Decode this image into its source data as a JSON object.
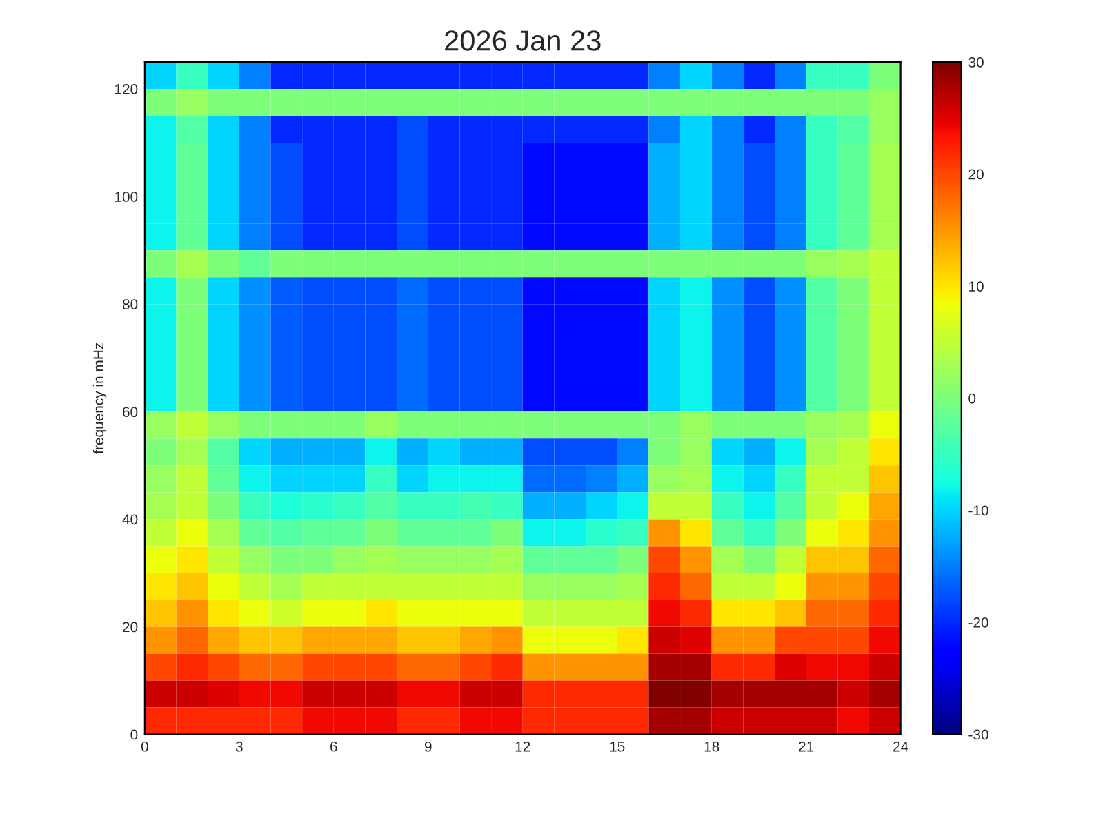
{
  "chart_data": {
    "type": "heatmap",
    "title": "2026 Jan 23",
    "ylabel": "frequency in mHz",
    "x": [
      0.5,
      1.5,
      2.5,
      3.5,
      4.5,
      5.5,
      6.5,
      7.5,
      8.5,
      9.5,
      10.5,
      11.5,
      12.5,
      13.5,
      14.5,
      15.5,
      16.5,
      17.5,
      18.5,
      19.5,
      20.5,
      21.5,
      22.5,
      23.5
    ],
    "xlim": [
      0,
      24
    ],
    "xticks": [
      0,
      3,
      6,
      9,
      12,
      15,
      18,
      21,
      24
    ],
    "ylim": [
      0,
      125
    ],
    "yticks": [
      0,
      20,
      40,
      60,
      80,
      100,
      120
    ],
    "clim": [
      -30,
      30
    ],
    "cticks": [
      -30,
      -20,
      -10,
      0,
      10,
      20,
      30
    ],
    "grid": false,
    "cells": [
      [
        -10,
        -5,
        -10,
        -15,
        -20,
        -20,
        -20,
        -20,
        -20,
        -20,
        -20,
        -20,
        -20,
        -20,
        -20,
        -20,
        -15,
        -10,
        -15,
        -20,
        -15,
        -5,
        -5,
        0
      ],
      [
        0,
        2,
        0,
        0,
        0,
        0,
        0,
        0,
        0,
        0,
        0,
        0,
        0,
        0,
        0,
        0,
        0,
        0,
        0,
        0,
        0,
        0,
        0,
        2
      ],
      [
        -8,
        -3,
        -10,
        -15,
        -20,
        -20,
        -20,
        -20,
        -18,
        -20,
        -20,
        -20,
        -20,
        -20,
        -20,
        -20,
        -15,
        -10,
        -15,
        -20,
        -15,
        -5,
        -3,
        2
      ],
      [
        -8,
        -2,
        -10,
        -15,
        -18,
        -20,
        -20,
        -20,
        -18,
        -20,
        -20,
        -20,
        -22,
        -22,
        -22,
        -22,
        -12,
        -10,
        -15,
        -18,
        -15,
        -5,
        -2,
        3
      ],
      [
        -8,
        -2,
        -10,
        -15,
        -18,
        -20,
        -20,
        -20,
        -18,
        -20,
        -20,
        -20,
        -22,
        -22,
        -22,
        -22,
        -12,
        -10,
        -15,
        -18,
        -15,
        -5,
        -2,
        3
      ],
      [
        -8,
        -2,
        -10,
        -15,
        -18,
        -20,
        -20,
        -20,
        -18,
        -20,
        -20,
        -20,
        -22,
        -22,
        -22,
        -22,
        -12,
        -10,
        -15,
        -18,
        -15,
        -5,
        -2,
        3
      ],
      [
        -8,
        -2,
        -10,
        -15,
        -18,
        -20,
        -20,
        -20,
        -18,
        -20,
        -20,
        -20,
        -22,
        -22,
        -22,
        -22,
        -12,
        -10,
        -15,
        -18,
        -15,
        -5,
        -2,
        3
      ],
      [
        0,
        3,
        0,
        -2,
        0,
        0,
        0,
        0,
        0,
        0,
        0,
        0,
        0,
        0,
        0,
        0,
        0,
        0,
        0,
        0,
        0,
        2,
        3,
        5
      ],
      [
        -8,
        0,
        -10,
        -14,
        -17,
        -18,
        -18,
        -18,
        -16,
        -18,
        -18,
        -18,
        -22,
        -22,
        -22,
        -22,
        -10,
        -8,
        -14,
        -18,
        -14,
        -3,
        0,
        5
      ],
      [
        -8,
        0,
        -10,
        -14,
        -17,
        -18,
        -18,
        -18,
        -16,
        -18,
        -18,
        -18,
        -22,
        -22,
        -22,
        -22,
        -10,
        -8,
        -14,
        -18,
        -14,
        -3,
        0,
        5
      ],
      [
        -8,
        0,
        -10,
        -14,
        -17,
        -18,
        -18,
        -18,
        -16,
        -18,
        -18,
        -18,
        -22,
        -22,
        -22,
        -22,
        -10,
        -8,
        -14,
        -18,
        -14,
        -3,
        0,
        5
      ],
      [
        -8,
        0,
        -10,
        -14,
        -17,
        -18,
        -18,
        -18,
        -16,
        -18,
        -18,
        -18,
        -22,
        -22,
        -22,
        -22,
        -10,
        -8,
        -14,
        -18,
        -14,
        -3,
        0,
        5
      ],
      [
        -8,
        0,
        -10,
        -14,
        -17,
        -18,
        -18,
        -18,
        -16,
        -18,
        -18,
        -18,
        -22,
        -22,
        -22,
        -22,
        -10,
        -8,
        -14,
        -18,
        -14,
        -3,
        0,
        5
      ],
      [
        2,
        5,
        2,
        0,
        0,
        0,
        0,
        2,
        0,
        0,
        0,
        0,
        0,
        0,
        0,
        0,
        0,
        2,
        0,
        0,
        0,
        2,
        3,
        8
      ],
      [
        0,
        3,
        -3,
        -10,
        -12,
        -12,
        -12,
        -8,
        -12,
        -10,
        -12,
        -12,
        -18,
        -18,
        -18,
        -15,
        0,
        2,
        -10,
        -12,
        -8,
        3,
        5,
        10
      ],
      [
        2,
        5,
        -2,
        -8,
        -10,
        -10,
        -10,
        -5,
        -10,
        -8,
        -8,
        -8,
        -16,
        -16,
        -15,
        -12,
        2,
        3,
        -8,
        -10,
        -5,
        5,
        5,
        12
      ],
      [
        3,
        5,
        0,
        -5,
        -7,
        -6,
        -5,
        -3,
        -5,
        -5,
        -4,
        -5,
        -12,
        -12,
        -10,
        -8,
        5,
        5,
        -5,
        -8,
        -3,
        5,
        8,
        14
      ],
      [
        5,
        8,
        3,
        -2,
        -3,
        -2,
        -2,
        0,
        -2,
        -2,
        -2,
        0,
        -8,
        -8,
        -6,
        -5,
        15,
        10,
        -2,
        -5,
        0,
        8,
        10,
        15
      ],
      [
        8,
        10,
        5,
        2,
        0,
        0,
        2,
        3,
        2,
        2,
        2,
        3,
        -2,
        -2,
        -2,
        0,
        20,
        15,
        3,
        0,
        5,
        12,
        12,
        18
      ],
      [
        10,
        12,
        8,
        5,
        3,
        5,
        5,
        5,
        5,
        5,
        5,
        5,
        2,
        2,
        2,
        3,
        22,
        18,
        5,
        5,
        8,
        15,
        15,
        20
      ],
      [
        12,
        15,
        10,
        8,
        6,
        8,
        8,
        10,
        8,
        8,
        8,
        8,
        5,
        5,
        5,
        5,
        24,
        22,
        10,
        10,
        12,
        18,
        18,
        22
      ],
      [
        15,
        18,
        14,
        12,
        12,
        14,
        14,
        14,
        12,
        12,
        14,
        15,
        8,
        8,
        8,
        10,
        26,
        25,
        15,
        15,
        20,
        20,
        20,
        24
      ],
      [
        20,
        22,
        20,
        18,
        18,
        20,
        20,
        20,
        18,
        18,
        20,
        22,
        15,
        15,
        15,
        15,
        28,
        28,
        22,
        22,
        25,
        24,
        24,
        26
      ],
      [
        26,
        26,
        25,
        24,
        24,
        26,
        26,
        26,
        24,
        24,
        26,
        26,
        22,
        22,
        22,
        22,
        30,
        30,
        28,
        28,
        28,
        28,
        26,
        28
      ],
      [
        22,
        22,
        22,
        22,
        22,
        24,
        24,
        24,
        22,
        22,
        24,
        24,
        22,
        22,
        22,
        22,
        28,
        28,
        26,
        26,
        26,
        26,
        24,
        26
      ]
    ]
  }
}
